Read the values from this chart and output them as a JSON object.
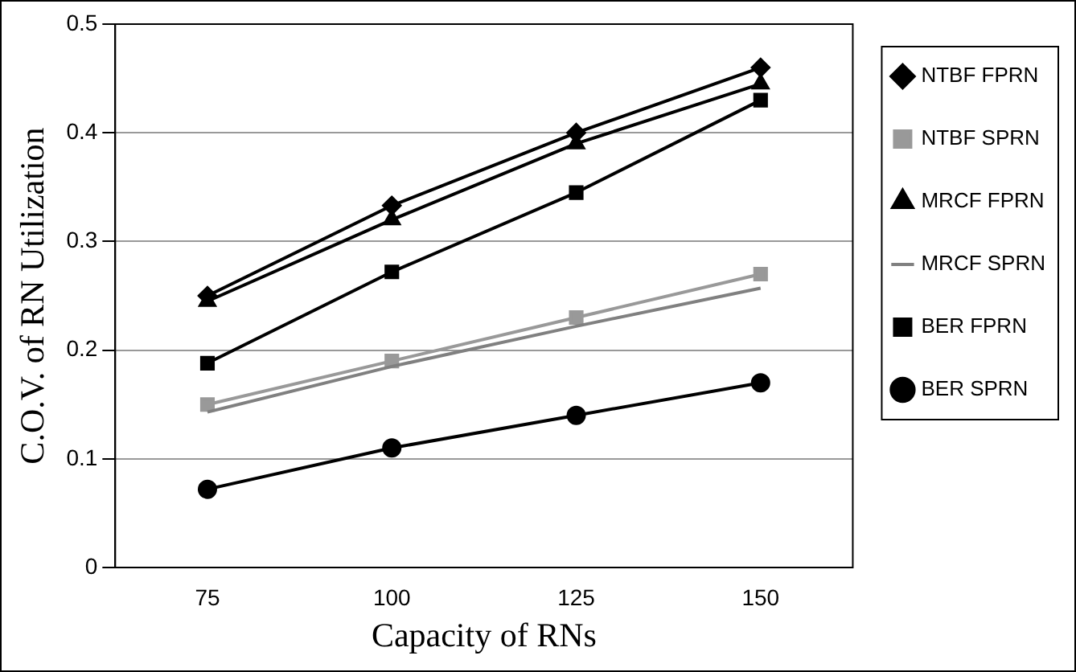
{
  "chart_data": {
    "type": "line",
    "xlabel": "Capacity of RNs",
    "ylabel": "C.O.V. of RN Utilization",
    "categories": [
      "75",
      "100",
      "125",
      "150"
    ],
    "ylim": [
      0,
      0.5
    ],
    "yticks": [
      0,
      0.1,
      0.2,
      0.3,
      0.4,
      0.5
    ],
    "grid": "y",
    "legend": "right",
    "series": [
      {
        "name": "NTBF FPRN",
        "color": "#000000",
        "marker": "diamond",
        "values": [
          0.25,
          0.333,
          0.4,
          0.46
        ]
      },
      {
        "name": "NTBF SPRN",
        "color": "#999999",
        "marker": "square",
        "values": [
          0.15,
          0.19,
          0.23,
          0.27
        ]
      },
      {
        "name": "MRCF FPRN",
        "color": "#000000",
        "marker": "triangle",
        "values": [
          0.245,
          0.32,
          0.39,
          0.445
        ]
      },
      {
        "name": "MRCF SPRN",
        "color": "#808080",
        "marker": "none",
        "values": [
          0.143,
          0.185,
          0.222,
          0.257
        ]
      },
      {
        "name": "BER FPRN",
        "color": "#000000",
        "marker": "square",
        "values": [
          0.188,
          0.272,
          0.345,
          0.43
        ]
      },
      {
        "name": "BER SPRN",
        "color": "#000000",
        "marker": "circle",
        "values": [
          0.072,
          0.11,
          0.14,
          0.17
        ]
      }
    ]
  }
}
